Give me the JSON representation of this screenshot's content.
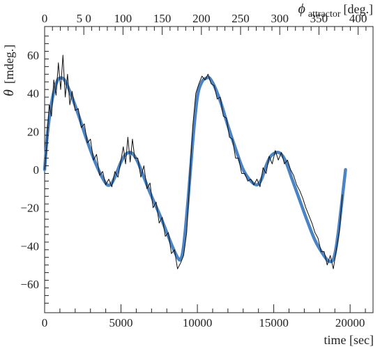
{
  "chart_data": {
    "type": "line",
    "xlabel": "time [sec]",
    "ylabel_symbol": "θ",
    "ylabel_unit": "[mdeg.]",
    "top_axis_symbol": "ϕ",
    "top_axis_subscript": "attractor",
    "top_axis_unit": "[deg.]",
    "xlim": [
      0,
      21500
    ],
    "ylim": [
      -75,
      75
    ],
    "top_xlim": [
      0,
      419
    ],
    "x_ticks": [
      0,
      5000,
      10000,
      15000,
      20000
    ],
    "y_ticks": [
      -60,
      -40,
      -20,
      0,
      20,
      40,
      60
    ],
    "top_ticks": [
      0,
      50,
      100,
      150,
      200,
      250,
      300,
      350,
      400
    ],
    "x_tick_labels": [
      "0",
      "5000",
      "10000",
      "15000",
      "20000"
    ],
    "y_tick_labels": [
      "−60",
      "−40",
      "−20",
      "0",
      "20",
      "40",
      "60"
    ],
    "top_tick_labels": [
      "0",
      "5 0",
      "100",
      "150",
      "200",
      "250",
      "300",
      "350",
      "400"
    ],
    "grid": false,
    "series": [
      {
        "color": "#4a84c4",
        "style": "thick-smooth",
        "x": [
          0,
          200,
          500,
          800,
          1000,
          1300,
          1700,
          2200,
          2700,
          3200,
          3700,
          4100,
          4400,
          4700,
          5000,
          5300,
          5600,
          5800,
          6100,
          6500,
          7000,
          7500,
          8000,
          8400,
          8700,
          8900,
          9100,
          9400,
          9700,
          10000,
          10300,
          10600,
          10800,
          11100,
          11500,
          12000,
          12500,
          13000,
          13500,
          13900,
          14200,
          14500,
          14800,
          15200,
          15500,
          15800,
          16200,
          16700,
          17200,
          17700,
          18200,
          18600,
          18900,
          19100,
          19300,
          19500,
          19700
        ],
        "y": [
          0,
          20,
          37,
          46,
          48,
          47,
          40,
          29,
          17,
          6,
          -3,
          -8,
          -7,
          -2,
          4,
          8,
          9,
          8,
          4,
          -4,
          -14,
          -23,
          -33,
          -41,
          -46,
          -47,
          -40,
          -15,
          15,
          38,
          46,
          48,
          48,
          44,
          36,
          23,
          11,
          0,
          -6,
          -8,
          -5,
          2,
          7,
          9,
          8,
          4,
          -5,
          -16,
          -27,
          -37,
          -44,
          -48,
          -47,
          -40,
          -28,
          -14,
          0
        ]
      },
      {
        "color": "#111111",
        "style": "thin-data",
        "x": [
          0,
          150,
          300,
          450,
          600,
          750,
          900,
          1050,
          1200,
          1350,
          1500,
          1650,
          1800,
          2000,
          2200,
          2400,
          2600,
          2800,
          3000,
          3200,
          3400,
          3600,
          3800,
          4000,
          4200,
          4400,
          4600,
          4800,
          5000,
          5150,
          5300,
          5450,
          5600,
          5750,
          5900,
          6100,
          6300,
          6500,
          6700,
          6900,
          7100,
          7300,
          7500,
          7700,
          7900,
          8100,
          8300,
          8500,
          8700,
          8900,
          9100,
          9300,
          9500,
          9700,
          9900,
          10100,
          10300,
          10500,
          10700,
          10900,
          11100,
          11300,
          11500,
          11700,
          11900,
          12100,
          12300,
          12500,
          12700,
          12900,
          13100,
          13300,
          13500,
          13700,
          13900,
          14100,
          14300,
          14500,
          14700,
          14900,
          15100,
          15300,
          15500,
          15700,
          15900,
          16100,
          16300,
          16500,
          16700,
          16900,
          17100,
          17300,
          17500,
          17700,
          17900,
          18100,
          18300,
          18500,
          18700,
          18900,
          19100,
          19300,
          19500
        ],
        "y": [
          0,
          14,
          34,
          28,
          47,
          39,
          56,
          42,
          60,
          38,
          50,
          34,
          41,
          31,
          32,
          22,
          24,
          14,
          16,
          5,
          8,
          -3,
          -1,
          -8,
          -5,
          -9,
          -1,
          -4,
          5,
          12,
          3,
          17,
          4,
          16,
          6,
          6,
          -4,
          2,
          -10,
          -7,
          -20,
          -17,
          -28,
          -25,
          -35,
          -33,
          -44,
          -42,
          -52,
          -49,
          -45,
          -33,
          -5,
          23,
          40,
          45,
          49,
          47,
          50,
          45,
          44,
          37,
          38,
          28,
          27,
          17,
          16,
          6,
          6,
          -2,
          -2,
          -6,
          -5,
          -8,
          -5,
          -9,
          1,
          -2,
          7,
          3,
          10,
          5,
          9,
          3,
          5,
          0,
          -3,
          -8,
          -11,
          -15,
          -20,
          -24,
          -28,
          -33,
          -36,
          -43,
          -43,
          -50,
          -45,
          -52,
          -42,
          -32,
          -13
        ]
      }
    ]
  }
}
